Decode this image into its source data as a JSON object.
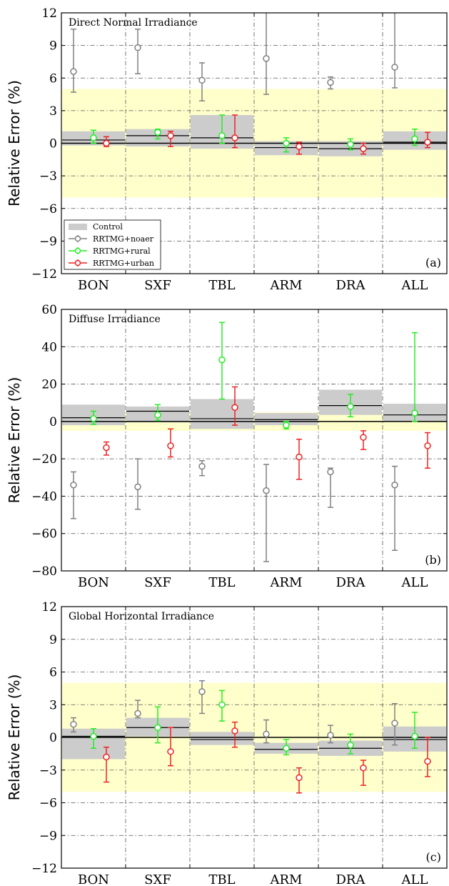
{
  "legend": [
    "Control",
    "RRTMG+noaer",
    "RRTMG+rural",
    "RRTMG+urban"
  ],
  "colors": {
    "control": "#cccccc",
    "noaer": "#808080",
    "rural": "#22ee22",
    "urban": "#ee2222",
    "band": "#ffffcc"
  },
  "chart_data": [
    {
      "type": "bar",
      "title": "Direct Normal Irradiance",
      "panel_label": "(a)",
      "ylabel": "Relative Error (%)",
      "categories": [
        "BON",
        "SXF",
        "TBL",
        "ARM",
        "DRA",
        "ALL"
      ],
      "ylim": [
        -12,
        12
      ],
      "yticks": [
        -12,
        -9,
        -6,
        -3,
        0,
        3,
        6,
        9,
        12
      ],
      "band": [
        -5,
        5
      ],
      "control": [
        {
          "mean": 0.3,
          "lo": -0.2,
          "hi": 1.1
        },
        {
          "mean": 0.7,
          "lo": -0.3,
          "hi": 1.3
        },
        {
          "mean": 0.5,
          "lo": -0.5,
          "hi": 2.6
        },
        {
          "mean": -0.4,
          "lo": -1.1,
          "hi": 0.2
        },
        {
          "mean": -0.5,
          "lo": -1.2,
          "hi": 0.2
        },
        {
          "mean": 0.1,
          "lo": -0.6,
          "hi": 1.1
        }
      ],
      "series": [
        {
          "name": "RRTMG+noaer",
          "key": "noaer",
          "points": [
            [
              6.6,
              4.7,
              10.5
            ],
            [
              8.8,
              6.4,
              10.5
            ],
            [
              5.8,
              3.9,
              7.4
            ],
            [
              7.8,
              4.5,
              12
            ],
            [
              5.6,
              5.0,
              6.1
            ],
            [
              7.0,
              5.1,
              12
            ]
          ]
        },
        {
          "name": "RRTMG+rural",
          "key": "rural",
          "points": [
            [
              0.5,
              0.0,
              1.2
            ],
            [
              1.0,
              0.4,
              1.3
            ],
            [
              0.7,
              0.0,
              2.6
            ],
            [
              0.0,
              -0.8,
              0.5
            ],
            [
              -0.1,
              -0.6,
              0.4
            ],
            [
              0.4,
              -0.2,
              1.3
            ]
          ]
        },
        {
          "name": "RRTMG+urban",
          "key": "urban",
          "points": [
            [
              0.0,
              -0.3,
              0.6
            ],
            [
              0.7,
              -0.3,
              1.1
            ],
            [
              0.5,
              -0.4,
              2.6
            ],
            [
              -0.3,
              -1.0,
              0.1
            ],
            [
              -0.5,
              -1.0,
              0.0
            ],
            [
              0.1,
              -0.4,
              1.0
            ]
          ]
        }
      ]
    },
    {
      "type": "bar",
      "title": "Diffuse Irradiance",
      "panel_label": "(b)",
      "ylabel": "Relative Error (%)",
      "categories": [
        "BON",
        "SXF",
        "TBL",
        "ARM",
        "DRA",
        "ALL"
      ],
      "ylim": [
        -80,
        60
      ],
      "yticks": [
        -80,
        -60,
        -40,
        -20,
        0,
        20,
        40,
        60
      ],
      "band": [
        -5,
        5
      ],
      "control": [
        {
          "mean": 2.0,
          "lo": -2.0,
          "hi": 9.0
        },
        {
          "mean": 5.5,
          "lo": -0.5,
          "hi": 8.0
        },
        {
          "mean": 1.5,
          "lo": -4.0,
          "hi": 12.0
        },
        {
          "mean": 1.0,
          "lo": -2.0,
          "hi": 4.5
        },
        {
          "mean": 8.5,
          "lo": 3.5,
          "hi": 17.0
        },
        {
          "mean": 3.5,
          "lo": 0.0,
          "hi": 9.5
        }
      ],
      "series": [
        {
          "name": "RRTMG+noaer",
          "key": "noaer",
          "points": [
            [
              -34,
              -52,
              -27
            ],
            [
              -35,
              -47,
              -20
            ],
            [
              -24,
              -29,
              -21
            ],
            [
              -37,
              -75,
              -23
            ],
            [
              -27,
              -46,
              -25
            ],
            [
              -34,
              -69,
              -24
            ]
          ]
        },
        {
          "name": "RRTMG+rural",
          "key": "rural",
          "points": [
            [
              1.5,
              -1.5,
              5.5
            ],
            [
              3.5,
              0.5,
              9.0
            ],
            [
              33,
              12,
              53
            ],
            [
              -2,
              -4,
              0
            ],
            [
              8,
              2.5,
              14.5
            ],
            [
              4.5,
              0,
              47.5
            ]
          ]
        },
        {
          "name": "RRTMG+urban",
          "key": "urban",
          "points": [
            [
              -14,
              -18,
              -11
            ],
            [
              -13,
              -19,
              -4
            ],
            [
              7.5,
              -2,
              18.5
            ],
            [
              -19,
              -31,
              -9.5
            ],
            [
              -8.5,
              -15,
              -5
            ],
            [
              -13,
              -25,
              -6
            ]
          ]
        }
      ]
    },
    {
      "type": "bar",
      "title": "Global Horizontal Irradiance",
      "panel_label": "(c)",
      "ylabel": "Relative Error (%)",
      "categories": [
        "BON",
        "SXF",
        "TBL",
        "ARM",
        "DRA",
        "ALL"
      ],
      "ylim": [
        -12,
        12
      ],
      "yticks": [
        -12,
        -9,
        -6,
        -3,
        0,
        3,
        6,
        9,
        12
      ],
      "band": [
        -5,
        5
      ],
      "control": [
        {
          "mean": 0.1,
          "lo": -2.0,
          "hi": 0.8
        },
        {
          "mean": 0.9,
          "lo": 0.1,
          "hi": 1.8
        },
        {
          "mean": -0.2,
          "lo": -0.7,
          "hi": 0.5
        },
        {
          "mean": -1.1,
          "lo": -1.5,
          "hi": -0.5
        },
        {
          "mean": -1.0,
          "lo": -1.7,
          "hi": -0.3
        },
        {
          "mean": -0.2,
          "lo": -1.3,
          "hi": 1.0
        }
      ],
      "series": [
        {
          "name": "RRTMG+noaer",
          "key": "noaer",
          "points": [
            [
              1.2,
              0.5,
              1.8
            ],
            [
              2.2,
              1.8,
              3.4
            ],
            [
              4.2,
              2.2,
              5.2
            ],
            [
              0.3,
              -0.5,
              1.6
            ],
            [
              0.2,
              -0.5,
              1.1
            ],
            [
              1.3,
              -0.7,
              3.1
            ]
          ]
        },
        {
          "name": "RRTMG+rural",
          "key": "rural",
          "points": [
            [
              0.1,
              -1.0,
              0.8
            ],
            [
              0.9,
              -0.5,
              2.8
            ],
            [
              3.0,
              1.5,
              4.3
            ],
            [
              -1.0,
              -1.6,
              -0.2
            ],
            [
              -0.7,
              -1.5,
              0.3
            ],
            [
              0.1,
              -1.0,
              2.3
            ]
          ]
        },
        {
          "name": "RRTMG+urban",
          "key": "urban",
          "points": [
            [
              -1.8,
              -4.1,
              -0.9
            ],
            [
              -1.3,
              -2.6,
              0.9
            ],
            [
              0.6,
              -0.9,
              1.4
            ],
            [
              -3.7,
              -5.1,
              -2.8
            ],
            [
              -2.8,
              -4.4,
              -2.1
            ],
            [
              -2.2,
              -3.6,
              0.0
            ]
          ]
        }
      ]
    }
  ]
}
